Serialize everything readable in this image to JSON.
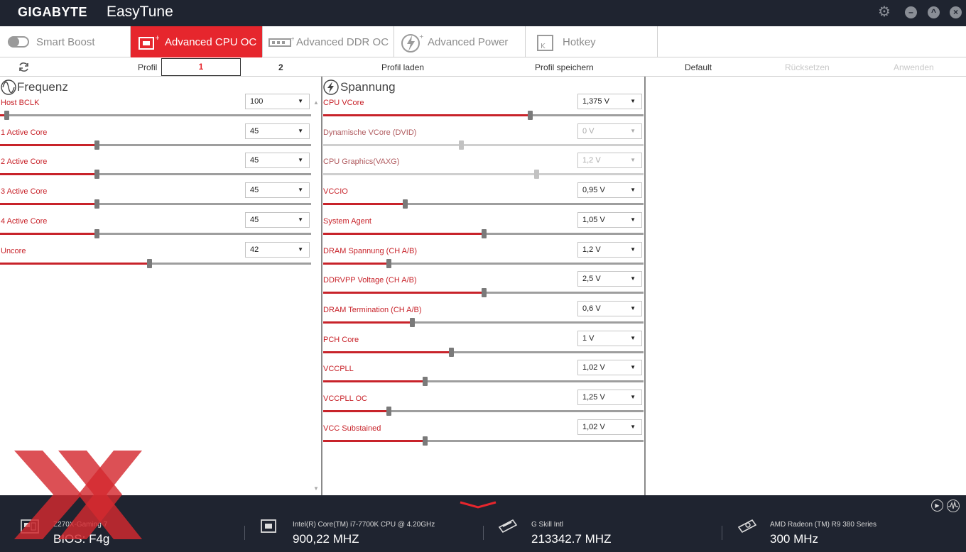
{
  "titlebar": {
    "brand": "GIGABYTE",
    "app": "EasyTune"
  },
  "tabs": [
    {
      "label": "Smart Boost"
    },
    {
      "label": "Advanced CPU OC"
    },
    {
      "label": "Advanced DDR OC"
    },
    {
      "label": "Advanced Power"
    },
    {
      "label": "Hotkey"
    }
  ],
  "profile_bar": {
    "label": "Profil",
    "profile1": "1",
    "profile2": "2",
    "load": "Profil laden",
    "save": "Profil speichern",
    "default": "Default",
    "reset": "Rücksetzen",
    "apply": "Anwenden"
  },
  "frequency": {
    "title": "Frequenz",
    "rows": [
      {
        "label": "Host BCLK",
        "value": "100",
        "level": 0.02
      },
      {
        "label": "1 Active Core",
        "value": "45",
        "level": 0.31
      },
      {
        "label": "2 Active Core",
        "value": "45",
        "level": 0.31
      },
      {
        "label": "3 Active Core",
        "value": "45",
        "level": 0.31
      },
      {
        "label": "4 Active Core",
        "value": "45",
        "level": 0.31
      },
      {
        "label": "Uncore",
        "value": "42",
        "level": 0.48
      }
    ]
  },
  "voltage": {
    "title": "Spannung",
    "rows": [
      {
        "label": "CPU VCore",
        "value": "1,375 V",
        "level": 0.645,
        "enabled": true
      },
      {
        "label": "Dynamische VCore (DVID)",
        "value": "0 V",
        "level": 0.43,
        "enabled": false
      },
      {
        "label": "CPU Graphics(VAXG)",
        "value": "1,2 V",
        "level": 0.665,
        "enabled": false
      },
      {
        "label": "VCCIO",
        "value": "0,95 V",
        "level": 0.255,
        "enabled": true
      },
      {
        "label": "System Agent",
        "value": "1,05 V",
        "level": 0.5,
        "enabled": true
      },
      {
        "label": "DRAM Spannung (CH A/B)",
        "value": "1,2 V",
        "level": 0.205,
        "enabled": true
      },
      {
        "label": "DDRVPP Voltage (CH A/B)",
        "value": "2,5 V",
        "level": 0.5,
        "enabled": true
      },
      {
        "label": "DRAM Termination (CH A/B)",
        "value": "0,6 V",
        "level": 0.278,
        "enabled": true
      },
      {
        "label": "PCH Core",
        "value": "1 V",
        "level": 0.4,
        "enabled": true
      },
      {
        "label": "VCCPLL",
        "value": "1,02 V",
        "level": 0.318,
        "enabled": true
      },
      {
        "label": "VCCPLL OC",
        "value": "1,25 V",
        "level": 0.205,
        "enabled": true
      },
      {
        "label": "VCC Substained",
        "value": "1,02 V",
        "level": 0.318,
        "enabled": true
      }
    ]
  },
  "bottom": {
    "board": {
      "name": "Z270X-Gaming 7",
      "value": "BIOS: F4g"
    },
    "cpu": {
      "name": "Intel(R) Core(TM) i7-7700K CPU @ 4.20GHz",
      "value": "900,22 MHZ"
    },
    "memory": {
      "name": "G Skill Intl",
      "value": "213342.7 MHZ"
    },
    "gpu": {
      "name": "AMD Radeon (TM) R9 380 Series",
      "value": "300 MHz"
    }
  },
  "colors": {
    "accent": "#e6262d",
    "titlebar": "#1f2430",
    "label": "#c8232a"
  }
}
